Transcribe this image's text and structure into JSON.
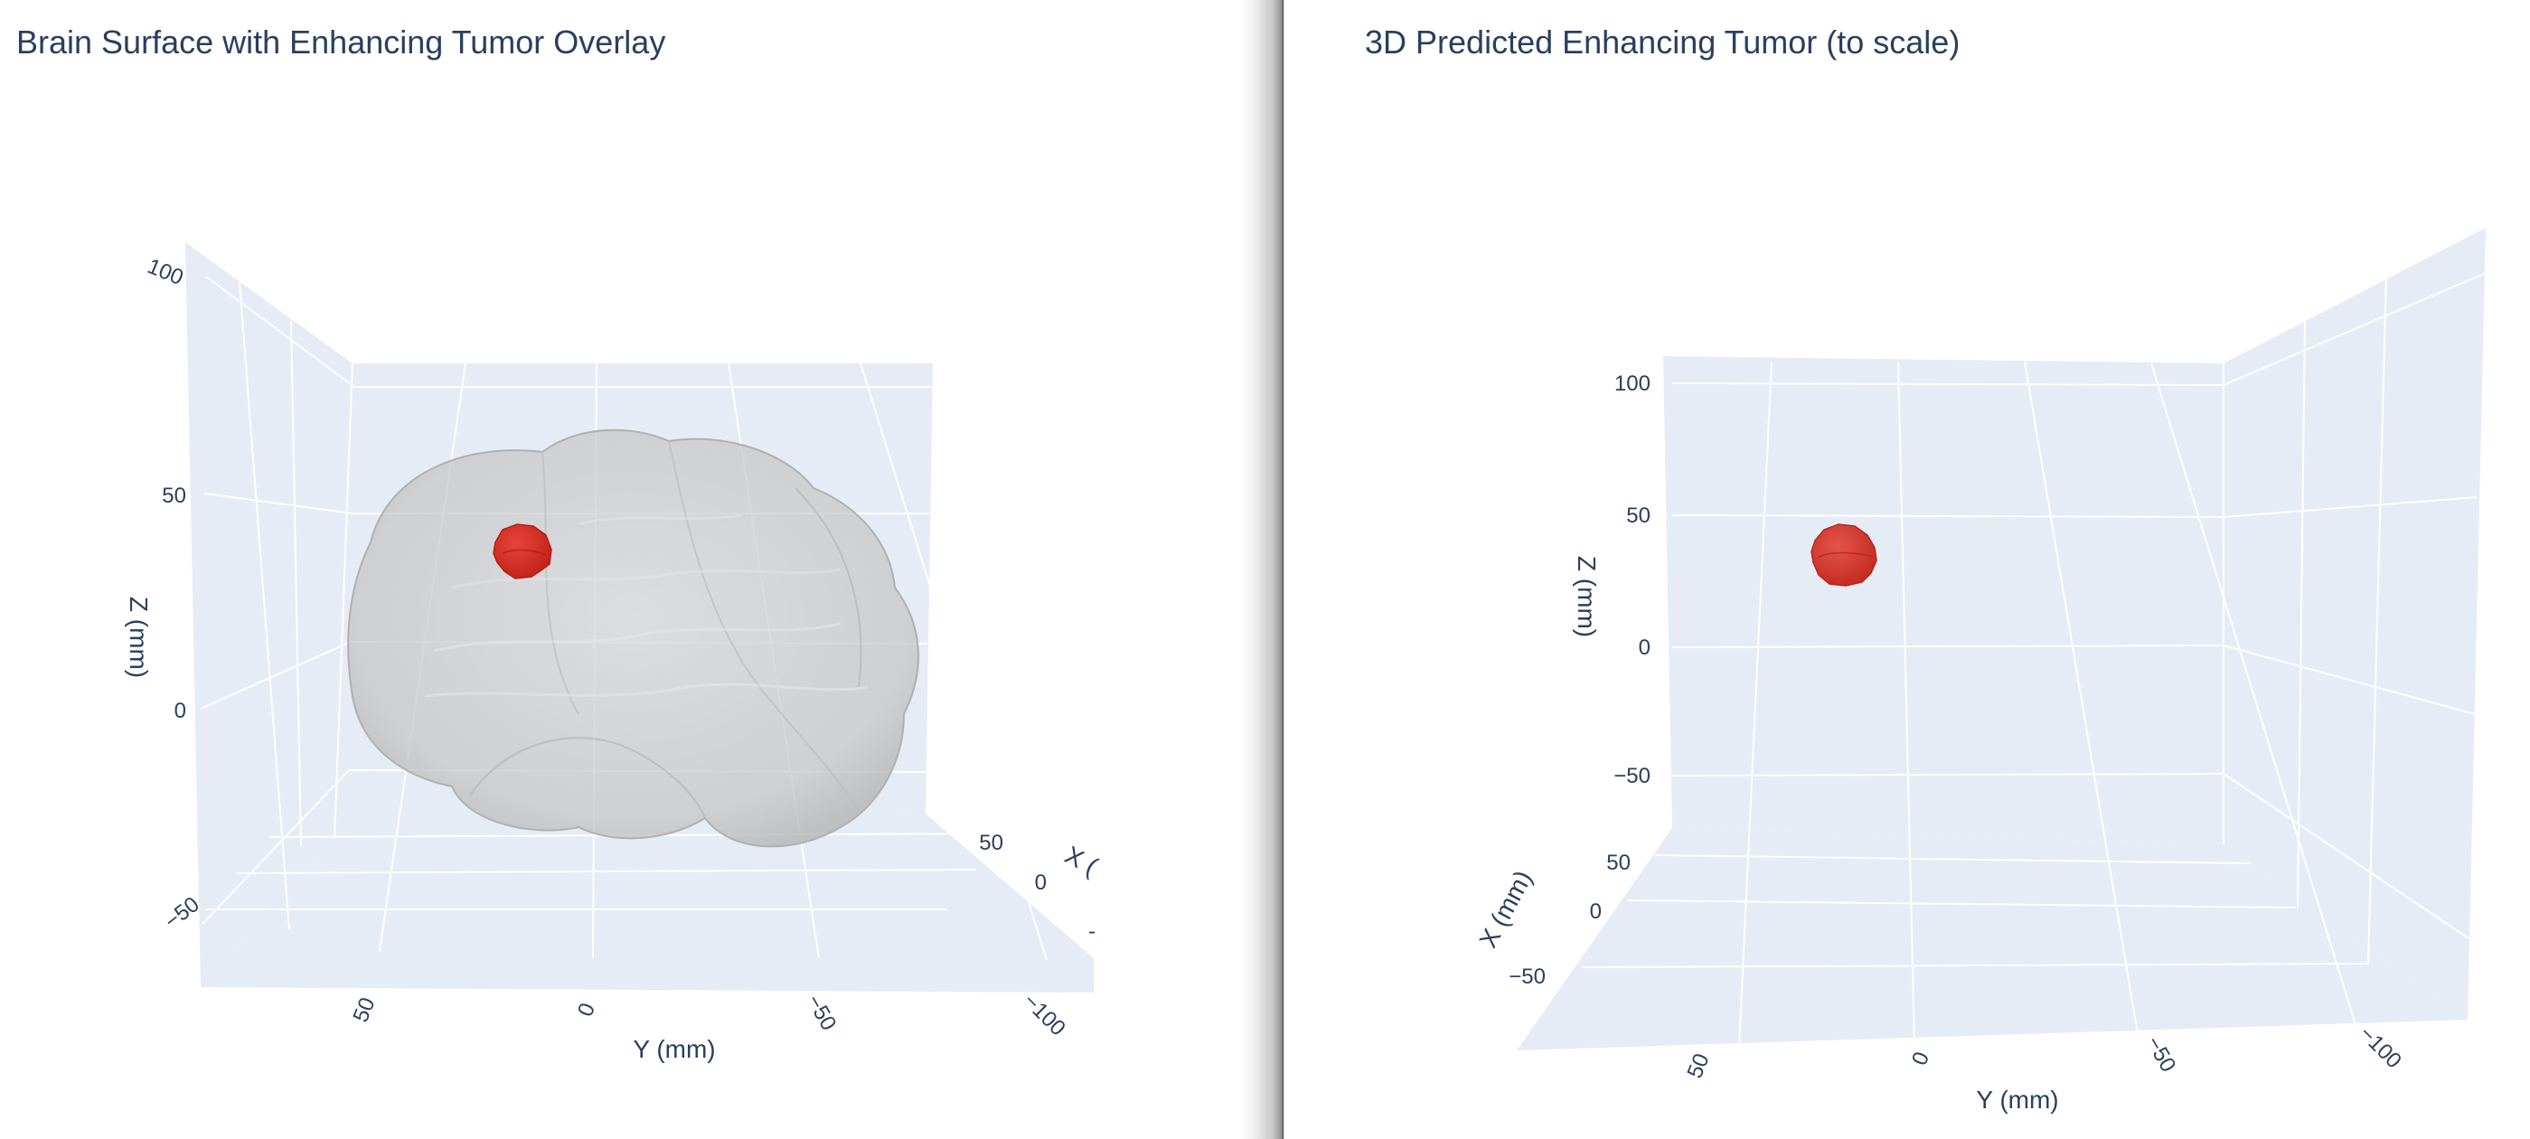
{
  "colors": {
    "pane": "#e5ecf6",
    "grid": "#ffffff",
    "text": "#2a3f5f",
    "brain": "#c9c9c9",
    "tumor": "#d62f24"
  },
  "chart_data": [
    {
      "type": "scatter",
      "subtype": "3d-mesh",
      "title": "Brain Surface with Enhancing Tumor Overlay",
      "xlabel": "X (",
      "ylabel": "Y (mm)",
      "zlabel": "Z (mm)",
      "x_ticks": [
        "50",
        "0",
        "-"
      ],
      "y_ticks": [
        "50",
        "0",
        "−50",
        "−100"
      ],
      "z_ticks": [
        "100",
        "50",
        "0",
        "−50"
      ],
      "series": [
        {
          "name": "",
          "mesh": "brain surface",
          "color": "#c9c9c9",
          "opacity": 0.55
        },
        {
          "name": "",
          "mesh": "enhancing tumor",
          "color": "#d62f24",
          "opacity": 1.0,
          "center": [
            0,
            30,
            35
          ]
        }
      ],
      "grid": true
    },
    {
      "type": "scatter",
      "subtype": "3d-mesh",
      "title": "3D Predicted Enhancing Tumor (to scale)",
      "xlabel": "X (mm)",
      "ylabel": "Y (mm)",
      "zlabel": "Z (mm)",
      "x_ticks": [
        "50",
        "0",
        "−50"
      ],
      "y_ticks": [
        "50",
        "0",
        "−50",
        "−100"
      ],
      "z_ticks": [
        "100",
        "50",
        "0",
        "−50"
      ],
      "series": [
        {
          "name": "",
          "mesh": "enhancing tumor",
          "color": "#d62f24",
          "opacity": 0.9,
          "center": [
            0,
            30,
            35
          ]
        }
      ],
      "grid": true
    }
  ]
}
